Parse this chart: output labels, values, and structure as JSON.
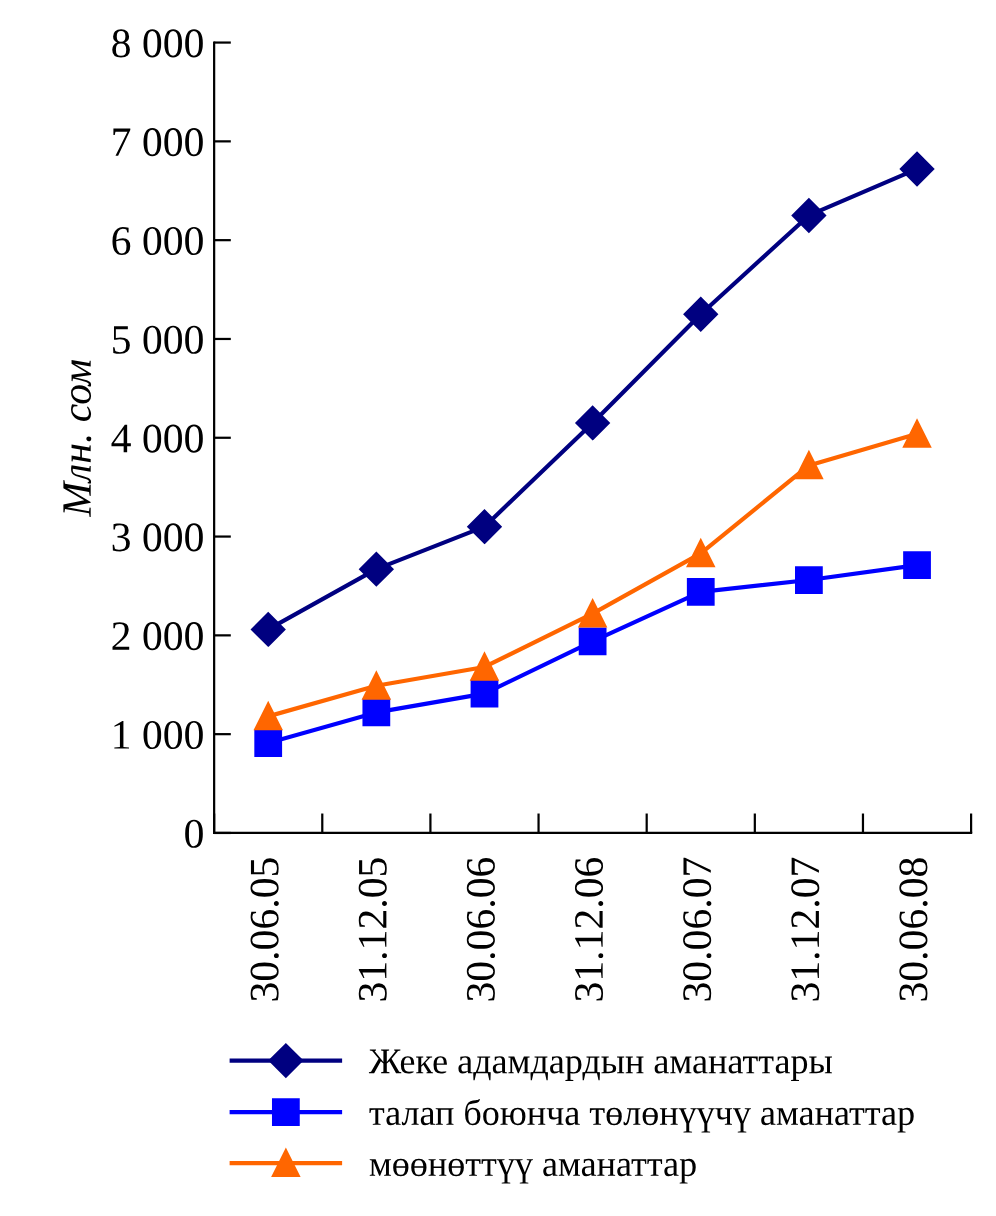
{
  "chart_data": {
    "type": "line",
    "ylabel": "Млн. сом",
    "categories": [
      "30.06.05",
      "31.12.05",
      "30.06.06",
      "31.12.06",
      "30.06.07",
      "31.12.07",
      "30.06.08"
    ],
    "series": [
      {
        "name": "Жеке адамдардын аманаттары",
        "color": "#000080",
        "marker": "diamond",
        "values": [
          2060,
          2670,
          3100,
          4150,
          5250,
          6250,
          6720
        ]
      },
      {
        "name": "талап боюнча төлөнүүчү аманаттар",
        "color": "#0000ff",
        "marker": "square",
        "values": [
          910,
          1220,
          1410,
          1940,
          2440,
          2560,
          2710
        ]
      },
      {
        "name": "мөөнөттүү аманаттар",
        "color": "#ff6600",
        "marker": "triangle",
        "values": [
          1180,
          1490,
          1680,
          2220,
          2830,
          3720,
          4040
        ]
      }
    ],
    "ylim": [
      0,
      8000
    ],
    "yticks": [
      0,
      {
        "value": 1000,
        "label": "1 000"
      },
      {
        "value": 2000,
        "label": "2 000"
      },
      {
        "value": 3000,
        "label": "3 000"
      },
      {
        "value": 4000,
        "label": "4 000"
      },
      {
        "value": 5000,
        "label": "5 000"
      },
      {
        "value": 6000,
        "label": "6 000"
      },
      {
        "value": 7000,
        "label": "7 000"
      },
      {
        "value": 8000,
        "label": "8 000"
      }
    ],
    "grid": false,
    "legend": "bottom",
    "line_style": "solid"
  }
}
